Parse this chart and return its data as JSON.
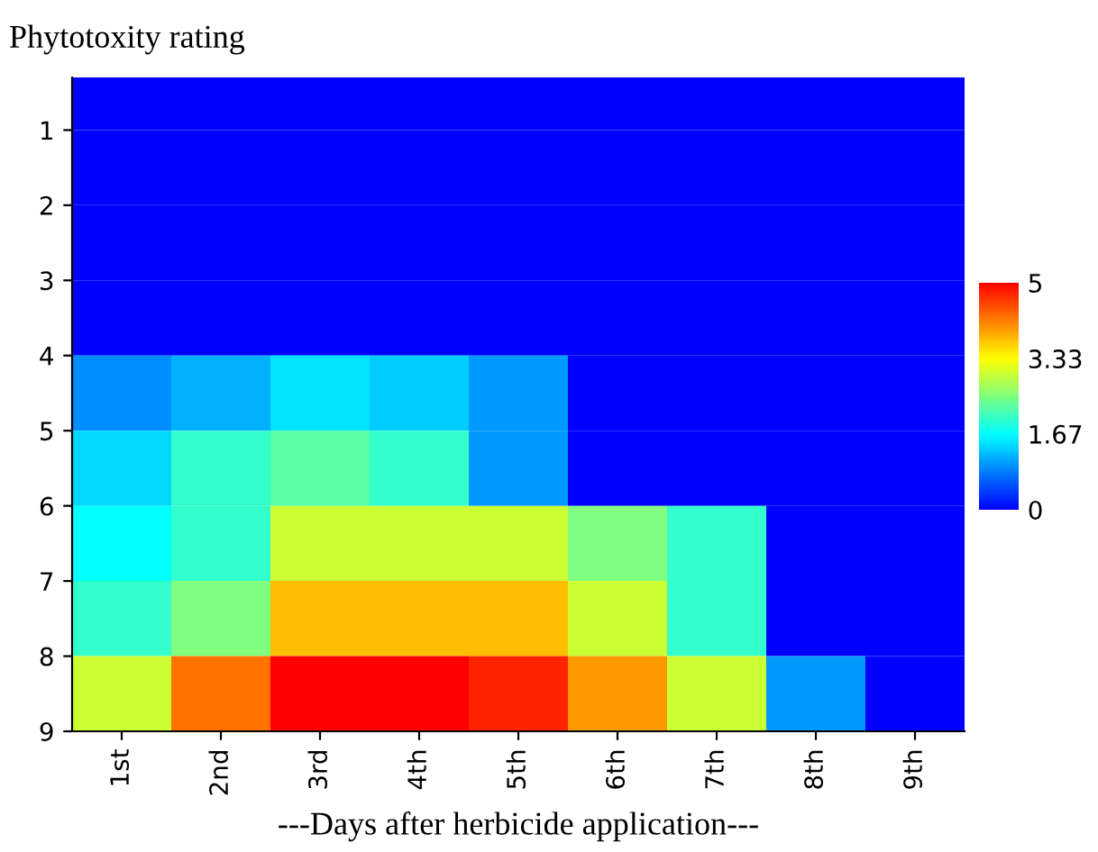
{
  "chart_data": {
    "type": "heatmap",
    "title": "Phytotoxity rating",
    "xlabel": "---Days after herbicide application---",
    "categories": [
      "1st",
      "2nd",
      "3rd",
      "4th",
      "5th",
      "6th",
      "7th",
      "8th",
      "9th"
    ],
    "ylim": [
      9,
      0.3
    ],
    "yticks": [
      1,
      2,
      3,
      4,
      5,
      6,
      7,
      8,
      9
    ],
    "cells": [
      [
        0,
        0,
        0,
        0,
        0,
        0,
        0,
        0,
        0
      ],
      [
        0,
        0,
        0,
        0,
        0,
        0,
        0,
        0,
        0
      ],
      [
        0,
        0,
        0,
        0,
        0,
        0,
        0,
        0,
        0
      ],
      [
        0,
        0,
        0,
        0,
        0,
        0,
        0,
        0,
        0
      ],
      [
        0.92,
        1.17,
        1.5,
        1.33,
        1.0,
        0,
        0,
        0,
        0
      ],
      [
        1.42,
        2.0,
        2.25,
        2.0,
        1.0,
        0,
        0,
        0,
        0
      ],
      [
        1.67,
        2.0,
        3.0,
        3.0,
        3.0,
        2.5,
        2.0,
        0,
        0
      ],
      [
        2.0,
        2.5,
        3.75,
        3.75,
        3.75,
        3.0,
        2.0,
        0,
        0
      ],
      [
        3.0,
        4.25,
        5.0,
        5.0,
        4.75,
        4.0,
        3.0,
        1.0,
        0
      ]
    ],
    "clim": [
      0,
      5
    ],
    "cticks": [
      0,
      {
        "value": 1.67,
        "label": "1.67"
      },
      {
        "value": 3.33,
        "label": "3.33"
      },
      5
    ],
    "colors": [
      "#0000ff",
      "#00ffff",
      "#ffff00",
      "#ff0000"
    ]
  }
}
